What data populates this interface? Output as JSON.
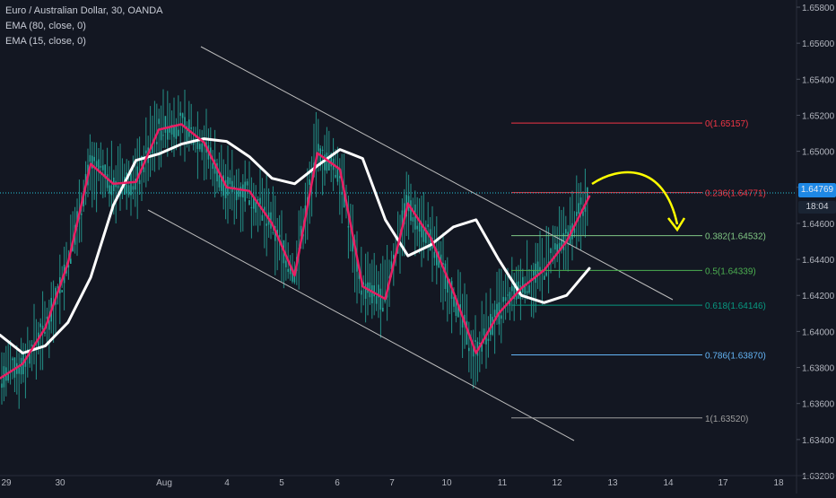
{
  "chart_data": {
    "type": "line",
    "title": "Euro / Australian Dollar, 30, OANDA",
    "indicators": [
      {
        "name": "EMA (80, close, 0)",
        "color": "#ffffff",
        "values": [
          1.6398,
          1.6388,
          1.6392,
          1.6405,
          1.643,
          1.647,
          1.6495,
          1.64985,
          1.6504,
          1.6507,
          1.65055,
          1.6497,
          1.6485,
          1.6482,
          1.6492,
          1.6501,
          1.6496,
          1.6462,
          1.6442,
          1.6448,
          1.6458,
          1.6462,
          1.644,
          1.642,
          1.6416,
          1.642,
          1.6435
        ]
      },
      {
        "name": "EMA (15, close, 0)",
        "color": "#e91e63",
        "values": [
          1.6374,
          1.6382,
          1.6402,
          1.6438,
          1.6493,
          1.6482,
          1.6483,
          1.6512,
          1.6515,
          1.6505,
          1.648,
          1.6478,
          1.646,
          1.6431,
          1.6499,
          1.649,
          1.6425,
          1.6418,
          1.6471,
          1.6452,
          1.6422,
          1.6388,
          1.641,
          1.6424,
          1.6434,
          1.645,
          1.6475
        ]
      }
    ],
    "x_ticks": [
      "29",
      "30",
      "Aug",
      "4",
      "5",
      "6",
      "7",
      "10",
      "11",
      "12",
      "13",
      "14",
      "17",
      "18"
    ],
    "y_ticks": [
      "1.63200",
      "1.63400",
      "1.63600",
      "1.63800",
      "1.64000",
      "1.64200",
      "1.64400",
      "1.64600",
      "1.64800",
      "1.65000",
      "1.65200",
      "1.65400",
      "1.65600",
      "1.65800"
    ],
    "ylim": [
      1.632,
      1.658
    ],
    "grid": false,
    "current_price": {
      "label": "1.64769",
      "value": 1.64769,
      "countdown": "18:04"
    },
    "fibonacci": [
      {
        "label": "0(1.65157)",
        "value": 1.65157,
        "color": "#f23645"
      },
      {
        "label": "0.236(1.64771)",
        "value": 1.64771,
        "color": "#f23645"
      },
      {
        "label": "0.382(1.64532)",
        "value": 1.64532,
        "color": "#81c784"
      },
      {
        "label": "0.5(1.64339)",
        "value": 1.64339,
        "color": "#4caf50"
      },
      {
        "label": "0.618(1.64146)",
        "value": 1.64146,
        "color": "#089981"
      },
      {
        "label": "0.786(1.63870)",
        "value": 1.6387,
        "color": "#64b5f6"
      },
      {
        "label": "1(1.63520)",
        "value": 1.6352,
        "color": "#9e9e9e"
      }
    ],
    "colors": {
      "background": "#131722",
      "candles": "#26a69a",
      "channel": "#bdbdbd",
      "arrow": "#ffff00",
      "axis_text": "#b2b5be"
    }
  }
}
